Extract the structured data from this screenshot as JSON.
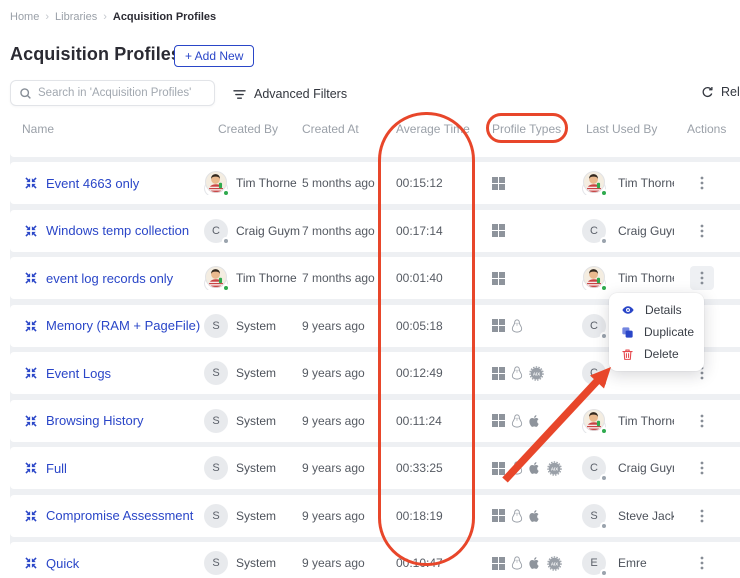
{
  "breadcrumb": {
    "items": [
      "Home",
      "Libraries",
      "Acquisition Profiles"
    ]
  },
  "header": {
    "title": "Acquisition Profiles",
    "add_new_label": "+ Add New"
  },
  "toolbar": {
    "search_placeholder": "Search in 'Acquisition Profiles'",
    "advanced_filters_label": "Advanced Filters",
    "reload_label": "Reload"
  },
  "table": {
    "columns": [
      "Name",
      "Created By",
      "Created At",
      "Average Time",
      "Profile Types",
      "Last Used By",
      "Actions"
    ],
    "rows": [
      {
        "name": "Event 4663 only",
        "created_by": "Tim Thorne",
        "created_by_avatar": {
          "type": "photo",
          "dot": "green"
        },
        "created_at": "5 months ago",
        "average_time": "00:15:12",
        "profile_types": [
          "windows"
        ],
        "last_used_by": "Tim Thorne",
        "last_used_avatar": {
          "type": "photo",
          "dot": "green"
        }
      },
      {
        "name": "Windows temp collection",
        "created_by": "Craig Guym",
        "created_by_avatar": {
          "type": "initial",
          "letter": "C",
          "dot": "gray"
        },
        "created_at": "7 months ago",
        "average_time": "00:17:14",
        "profile_types": [
          "windows"
        ],
        "last_used_by": "Craig Guym",
        "last_used_avatar": {
          "type": "initial",
          "letter": "C",
          "dot": "gray"
        }
      },
      {
        "name": "event log records only",
        "created_by": "Tim Thorne",
        "created_by_avatar": {
          "type": "photo",
          "dot": "green"
        },
        "created_at": "7 months ago",
        "average_time": "00:01:40",
        "profile_types": [
          "windows"
        ],
        "last_used_by": "Tim Thorne",
        "last_used_avatar": {
          "type": "photo",
          "dot": "green"
        },
        "actions_active": true
      },
      {
        "name": "Memory (RAM + PageFile)",
        "created_by": "System",
        "created_by_avatar": {
          "type": "initial",
          "letter": "S",
          "dot": "none"
        },
        "created_at": "9 years ago",
        "average_time": "00:05:18",
        "profile_types": [
          "windows",
          "linux"
        ],
        "last_used_by": "",
        "last_used_avatar": {
          "type": "initial",
          "letter": "C",
          "dot": "gray"
        }
      },
      {
        "name": "Event Logs",
        "created_by": "System",
        "created_by_avatar": {
          "type": "initial",
          "letter": "S",
          "dot": "none"
        },
        "created_at": "9 years ago",
        "average_time": "00:12:49",
        "profile_types": [
          "windows",
          "linux",
          "aix"
        ],
        "last_used_by": "",
        "last_used_avatar": {
          "type": "initial",
          "letter": "C",
          "dot": "gray"
        }
      },
      {
        "name": "Browsing History",
        "created_by": "System",
        "created_by_avatar": {
          "type": "initial",
          "letter": "S",
          "dot": "none"
        },
        "created_at": "9 years ago",
        "average_time": "00:11:24",
        "profile_types": [
          "windows",
          "linux",
          "apple"
        ],
        "last_used_by": "Tim Thorne",
        "last_used_avatar": {
          "type": "photo",
          "dot": "green"
        }
      },
      {
        "name": "Full",
        "created_by": "System",
        "created_by_avatar": {
          "type": "initial",
          "letter": "S",
          "dot": "none"
        },
        "created_at": "9 years ago",
        "average_time": "00:33:25",
        "profile_types": [
          "windows",
          "linux",
          "apple",
          "aix"
        ],
        "last_used_by": "Craig Guym",
        "last_used_avatar": {
          "type": "initial",
          "letter": "C",
          "dot": "gray"
        }
      },
      {
        "name": "Compromise Assessment",
        "created_by": "System",
        "created_by_avatar": {
          "type": "initial",
          "letter": "S",
          "dot": "none"
        },
        "created_at": "9 years ago",
        "average_time": "00:18:19",
        "profile_types": [
          "windows",
          "linux",
          "apple"
        ],
        "last_used_by": "Steve Jacks",
        "last_used_avatar": {
          "type": "initial",
          "letter": "S",
          "dot": "gray"
        }
      },
      {
        "name": "Quick",
        "created_by": "System",
        "created_by_avatar": {
          "type": "initial",
          "letter": "S",
          "dot": "none"
        },
        "created_at": "9 years ago",
        "average_time": "00:10:47",
        "profile_types": [
          "windows",
          "linux",
          "apple",
          "aix"
        ],
        "last_used_by": "Emre",
        "last_used_avatar": {
          "type": "initial",
          "letter": "E",
          "dot": "gray"
        }
      }
    ]
  },
  "context_menu": {
    "items": [
      {
        "label": "Details",
        "icon": "eye-icon",
        "color": "#2a46c8"
      },
      {
        "label": "Duplicate",
        "icon": "copy-icon",
        "color": "#2a46c8"
      },
      {
        "label": "Delete",
        "icon": "trash-icon",
        "color": "#e5484d"
      }
    ]
  },
  "annotations": {
    "highlight_color": "#e8462a",
    "circled_columns": [
      "Average Time",
      "Profile Types"
    ],
    "arrow_points_to": "Delete menu item"
  },
  "colors": {
    "link_blue": "#2a46c8",
    "row_bg": "#ffffff",
    "page_gap": "#eef0f3",
    "danger_red": "#e5484d"
  }
}
